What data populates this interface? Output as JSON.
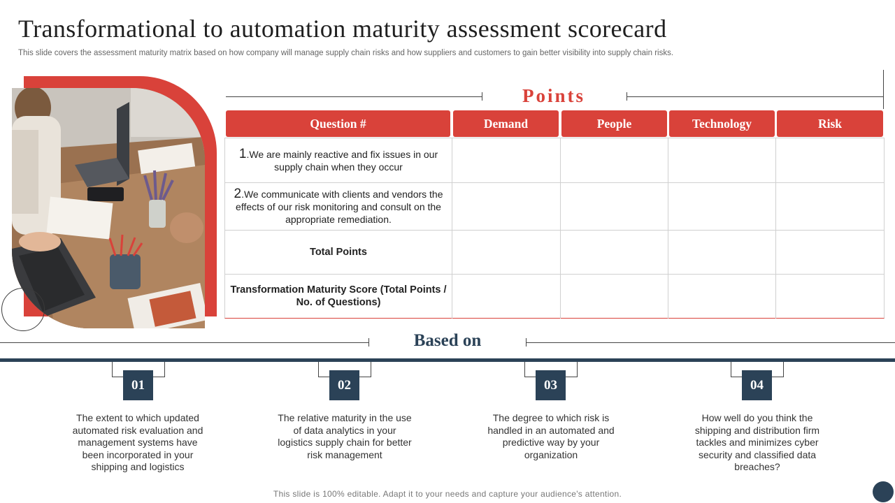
{
  "header": {
    "title": "Transformational to automation maturity assessment scorecard",
    "subtitle": "This slide covers the assessment maturity matrix based on how company will manage supply chain risks and how suppliers and customers to gain better visibility into supply chain risks."
  },
  "points_label": "Points",
  "table": {
    "columns": [
      "Question #",
      "Demand",
      "People",
      "Technology",
      "Risk"
    ],
    "rows": [
      {
        "num": "1",
        "text": ".We are mainly reactive and fix issues in our supply chain when they occur"
      },
      {
        "num": "2",
        "text": ".We communicate with clients and vendors the effects of our risk monitoring and consult on the appropriate remediation."
      },
      {
        "num": "",
        "text": "Total Points"
      },
      {
        "num": "",
        "text": "Transformation Maturity Score (Total Points / No. of Questions)"
      }
    ]
  },
  "based_on": {
    "label": "Based on",
    "items": [
      {
        "num": "01",
        "text": "The extent to which updated automated risk evaluation and management systems have been incorporated in your shipping and logistics"
      },
      {
        "num": "02",
        "text": "The relative maturity in the use of data analytics in your logistics supply chain for better risk management"
      },
      {
        "num": "03",
        "text": "The degree to which risk is handled in an automated and predictive way by your organization"
      },
      {
        "num": "04",
        "text": "How well do you think the shipping and distribution firm tackles and minimizes cyber security and classified data breaches?"
      }
    ]
  },
  "footer": "This slide is 100% editable. Adapt it to your needs and capture your audience's attention.",
  "colors": {
    "accent_red": "#d9423a",
    "navy": "#2b4257"
  }
}
